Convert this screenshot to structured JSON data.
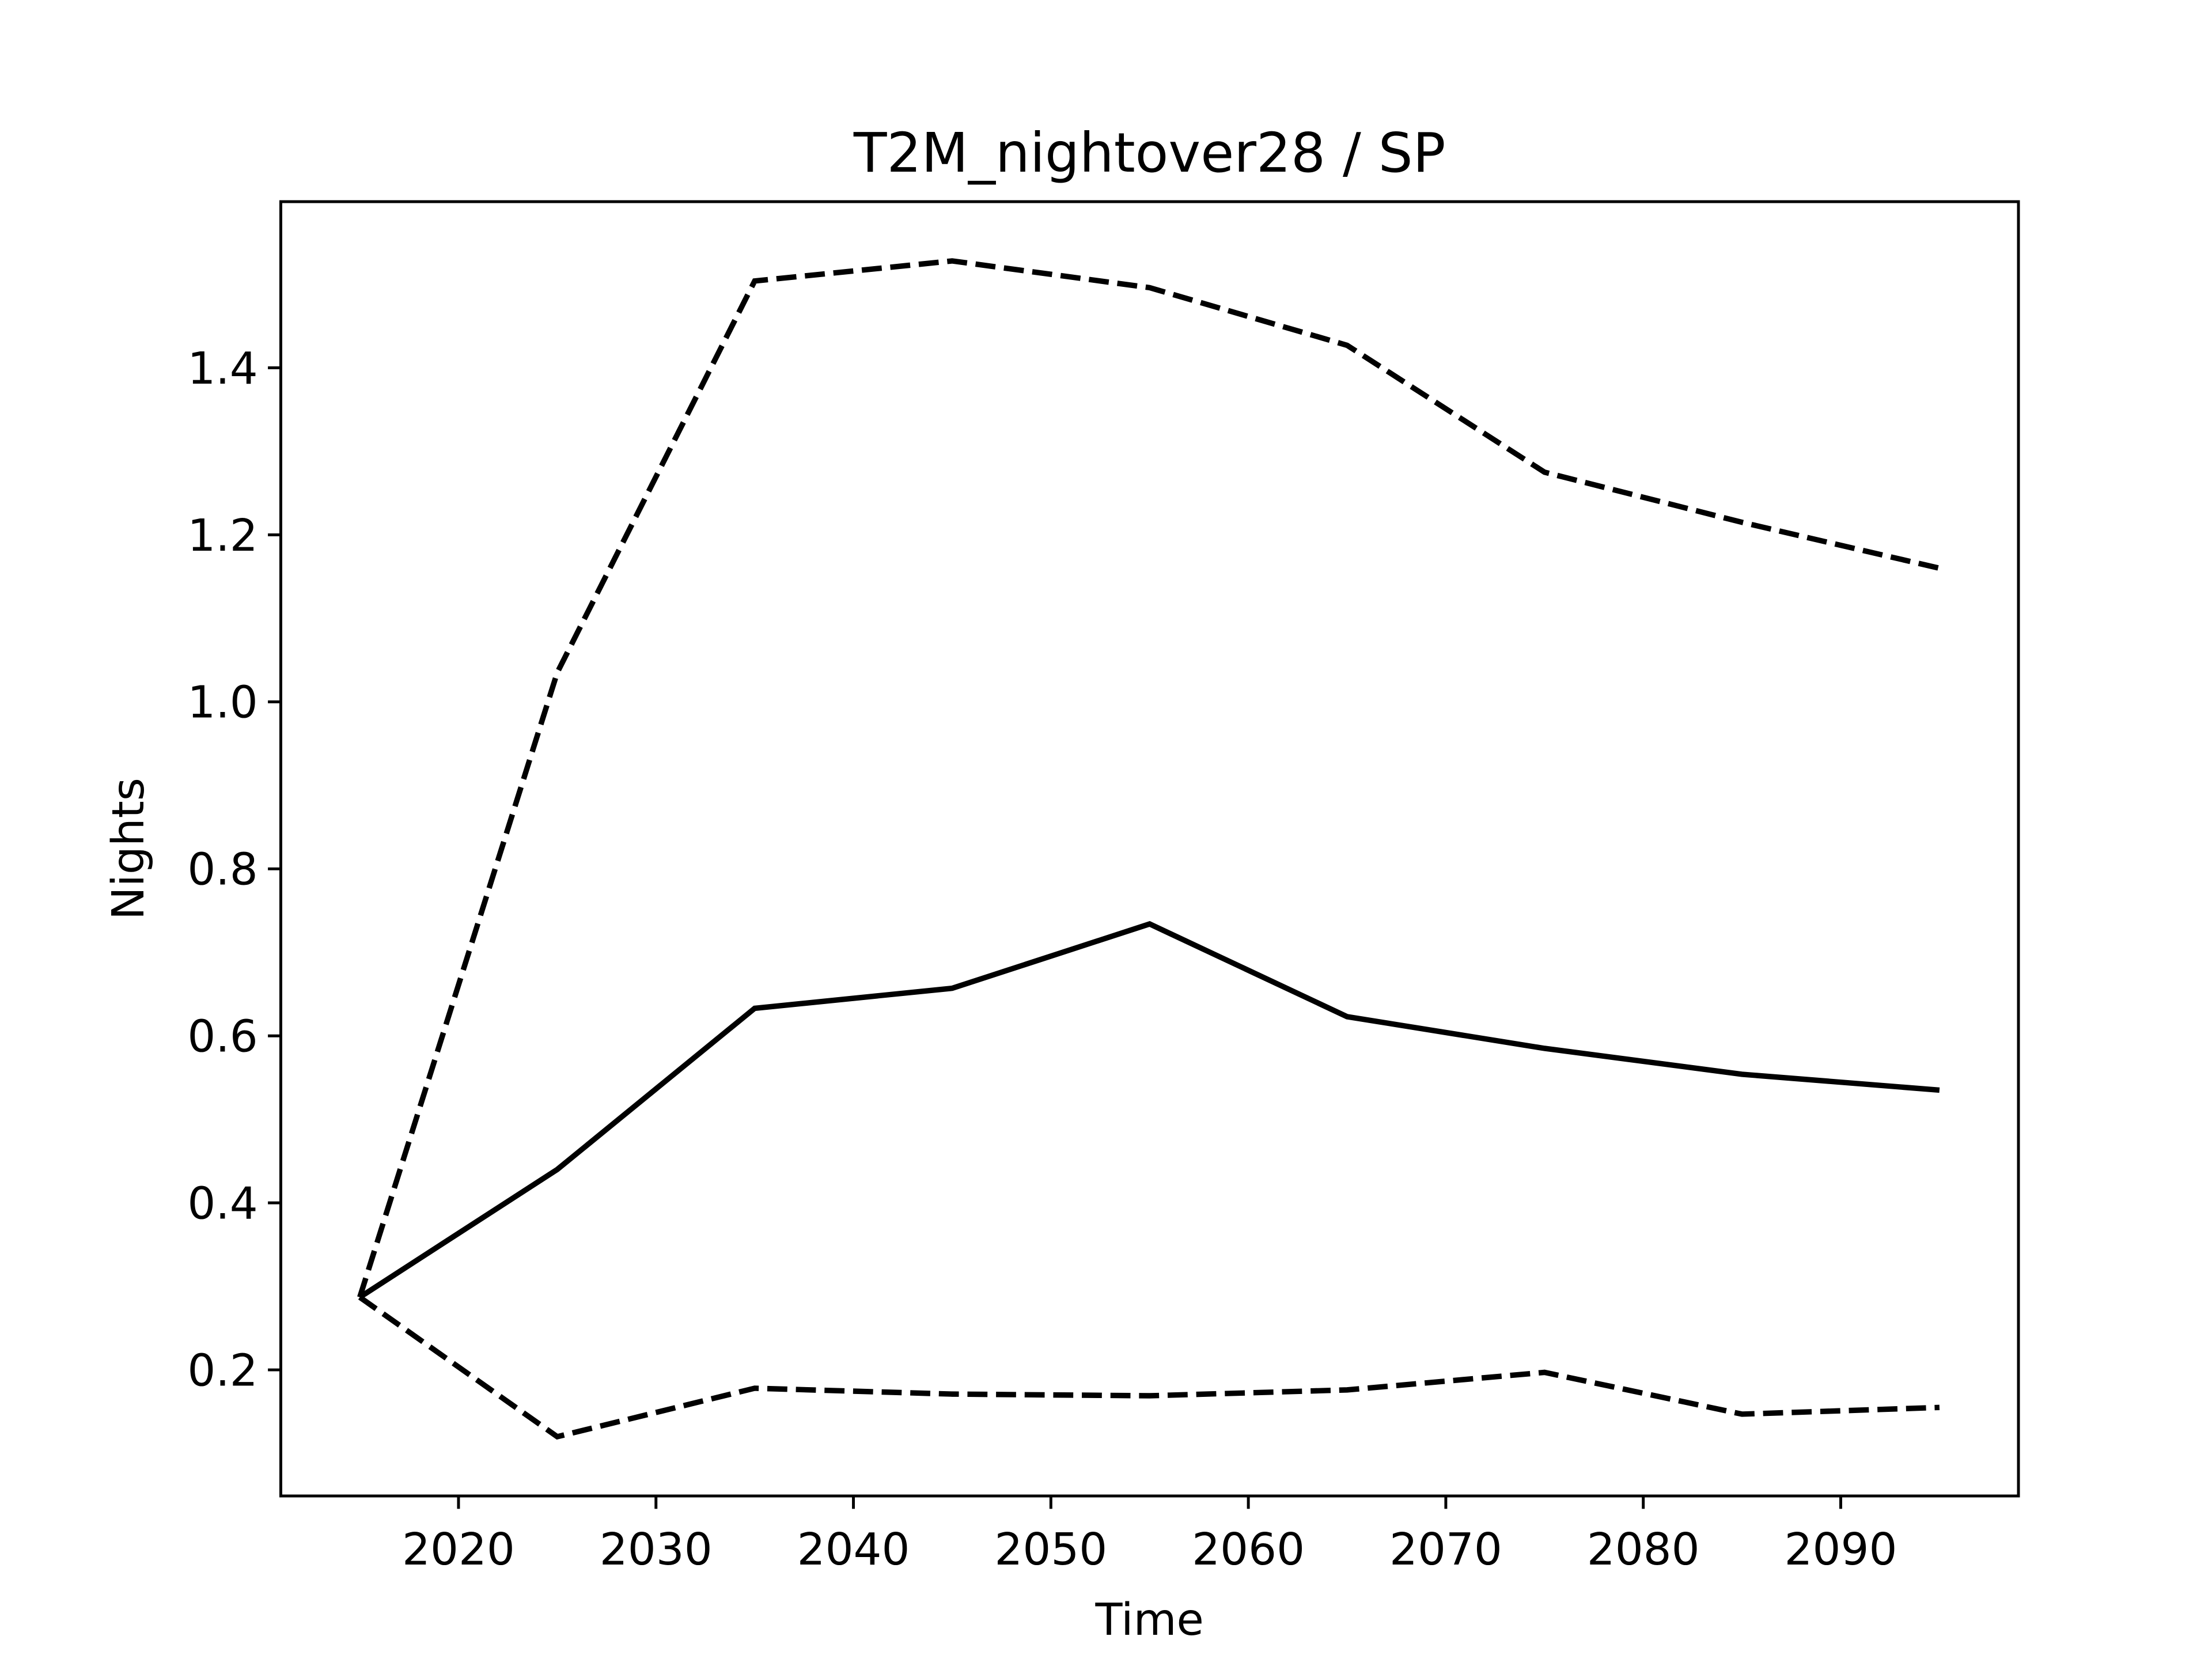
{
  "chart_data": {
    "type": "line",
    "title": "T2M_nightover28 / SP",
    "xlabel": "Time",
    "ylabel": "Nights",
    "x": [
      2015,
      2025,
      2035,
      2045,
      2055,
      2065,
      2075,
      2085,
      2095
    ],
    "series": [
      {
        "color": "#000000",
        "linestyle": "dashed",
        "values": [
          0.287,
          1.035,
          1.504,
          1.528,
          1.496,
          1.427,
          1.275,
          1.215,
          1.16
        ]
      },
      {
        "color": "#000000",
        "linestyle": "solid",
        "values": [
          0.287,
          0.44,
          0.633,
          0.657,
          0.734,
          0.623,
          0.585,
          0.554,
          0.535
        ]
      },
      {
        "color": "#000000",
        "linestyle": "dashed",
        "values": [
          0.287,
          0.12,
          0.178,
          0.171,
          0.169,
          0.176,
          0.197,
          0.147,
          0.155
        ]
      }
    ],
    "xlim": [
      2011,
      2099
    ],
    "ylim": [
      0.049,
      1.599
    ],
    "xticks": [
      2020,
      2030,
      2040,
      2050,
      2060,
      2070,
      2080,
      2090
    ],
    "yticks": [
      0.2,
      0.4,
      0.6,
      0.8,
      {
        "value": 1,
        "label": "1.0"
      },
      1.2,
      1.4
    ],
    "grid": false
  }
}
